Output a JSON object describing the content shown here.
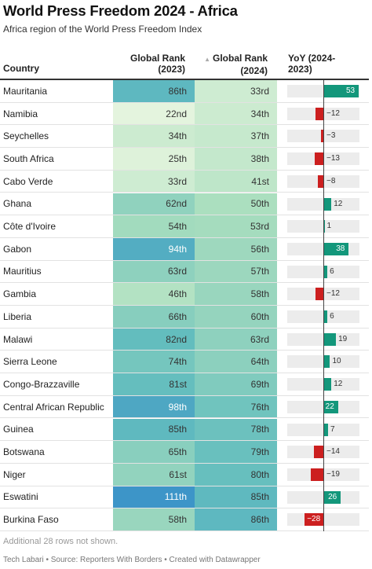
{
  "title": "World Press Freedom 2024 - Africa",
  "subtitle": "Africa region of the World Press Freedom Index",
  "columns": {
    "country": "Country",
    "rank_2023_line1": "Global Rank",
    "rank_2023_line2": "(2023)",
    "rank_2024_sort": "▲",
    "rank_2024_line1": "Global Rank",
    "rank_2024_line2": "(2024)",
    "yoy_line1": "YoY (2024-",
    "yoy_line2": "2023)"
  },
  "notice": "Additional 28 rows not shown.",
  "footer": "Tech Labari • Source: Reporters With Borders • Created with Datawrapper",
  "colors": {
    "positive": "#13977b",
    "negative": "#cc1f1f",
    "track": "#ececec"
  },
  "chart_data": {
    "type": "table",
    "rows": [
      {
        "country": "Mauritania",
        "rank_2023": "86th",
        "rank_2024": "33rd",
        "yoy": 53
      },
      {
        "country": "Namibia",
        "rank_2023": "22nd",
        "rank_2024": "34th",
        "yoy": -12
      },
      {
        "country": "Seychelles",
        "rank_2023": "34th",
        "rank_2024": "37th",
        "yoy": -3
      },
      {
        "country": "South Africa",
        "rank_2023": "25th",
        "rank_2024": "38th",
        "yoy": -13
      },
      {
        "country": "Cabo Verde",
        "rank_2023": "33rd",
        "rank_2024": "41st",
        "yoy": -8
      },
      {
        "country": "Ghana",
        "rank_2023": "62nd",
        "rank_2024": "50th",
        "yoy": 12
      },
      {
        "country": "Côte d'Ivoire",
        "rank_2023": "54th",
        "rank_2024": "53rd",
        "yoy": 1
      },
      {
        "country": "Gabon",
        "rank_2023": "94th",
        "rank_2024": "56th",
        "yoy": 38
      },
      {
        "country": "Mauritius",
        "rank_2023": "63rd",
        "rank_2024": "57th",
        "yoy": 6
      },
      {
        "country": "Gambia",
        "rank_2023": "46th",
        "rank_2024": "58th",
        "yoy": -12
      },
      {
        "country": "Liberia",
        "rank_2023": "66th",
        "rank_2024": "60th",
        "yoy": 6
      },
      {
        "country": "Malawi",
        "rank_2023": "82nd",
        "rank_2024": "63rd",
        "yoy": 19
      },
      {
        "country": "Sierra Leone",
        "rank_2023": "74th",
        "rank_2024": "64th",
        "yoy": 10
      },
      {
        "country": "Congo-Brazzaville",
        "rank_2023": "81st",
        "rank_2024": "69th",
        "yoy": 12
      },
      {
        "country": "Central African Republic",
        "rank_2023": "98th",
        "rank_2024": "76th",
        "yoy": 22
      },
      {
        "country": "Guinea",
        "rank_2023": "85th",
        "rank_2024": "78th",
        "yoy": 7
      },
      {
        "country": "Botswana",
        "rank_2023": "65th",
        "rank_2024": "79th",
        "yoy": -14
      },
      {
        "country": "Niger",
        "rank_2023": "61st",
        "rank_2024": "80th",
        "yoy": -19
      },
      {
        "country": "Eswatini",
        "rank_2023": "111th",
        "rank_2024": "85th",
        "yoy": 26
      },
      {
        "country": "Burkina Faso",
        "rank_2023": "58th",
        "rank_2024": "86th",
        "yoy": -28
      }
    ]
  }
}
